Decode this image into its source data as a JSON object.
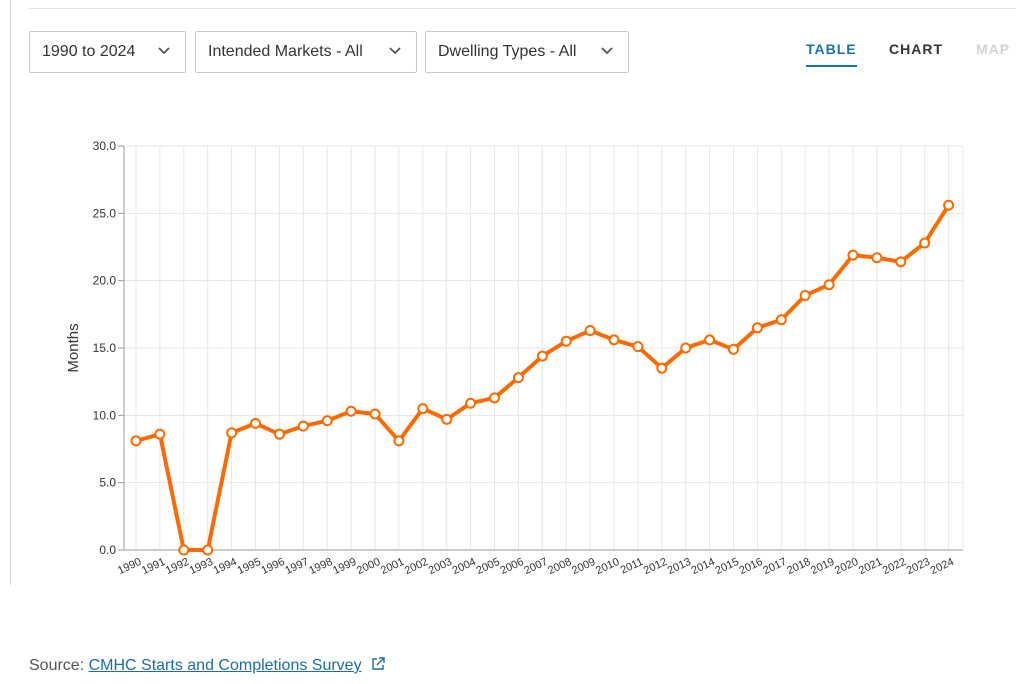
{
  "filters": {
    "years": "1990 to 2024",
    "markets": "Intended Markets - All",
    "dwelling": "Dwelling Types - All"
  },
  "view_tabs": {
    "table": "TABLE",
    "chart": "CHART",
    "map": "MAP"
  },
  "source": {
    "prefix": "Source: ",
    "link_text": "CMHC Starts and Completions Survey"
  },
  "icons": {
    "dropdown": "chevron-down-icon",
    "external": "external-link-icon"
  },
  "colors": {
    "line": "#ff6a00",
    "accent": "#1a73a8",
    "link": "#1a6ea8"
  },
  "chart_data": {
    "type": "line",
    "title": "",
    "xlabel": "",
    "ylabel": "Months",
    "ylim": [
      0,
      30
    ],
    "yticks": [
      0,
      5,
      10,
      15,
      20,
      25,
      30
    ],
    "ytick_labels": [
      "0.0",
      "5.0",
      "10.0",
      "15.0",
      "20.0",
      "25.0",
      "30.0"
    ],
    "grid": true,
    "legend": "none",
    "categories": [
      "1990",
      "1991",
      "1992",
      "1993",
      "1994",
      "1995",
      "1996",
      "1997",
      "1998",
      "1999",
      "2000",
      "2001",
      "2002",
      "2003",
      "2004",
      "2005",
      "2006",
      "2007",
      "2008",
      "2009",
      "2010",
      "2011",
      "2012",
      "2013",
      "2014",
      "2015",
      "2016",
      "2017",
      "2018",
      "2019",
      "2020",
      "2021",
      "2022",
      "2023",
      "2024"
    ],
    "values": [
      8.1,
      8.6,
      0.0,
      0.0,
      8.7,
      9.4,
      8.6,
      9.2,
      9.6,
      10.3,
      10.1,
      8.1,
      10.5,
      9.7,
      10.9,
      11.3,
      12.8,
      14.4,
      15.5,
      16.3,
      15.6,
      15.1,
      13.5,
      15.0,
      15.6,
      14.9,
      16.5,
      17.1,
      18.9,
      19.7,
      21.9,
      21.7,
      21.4,
      22.8,
      25.6
    ]
  }
}
